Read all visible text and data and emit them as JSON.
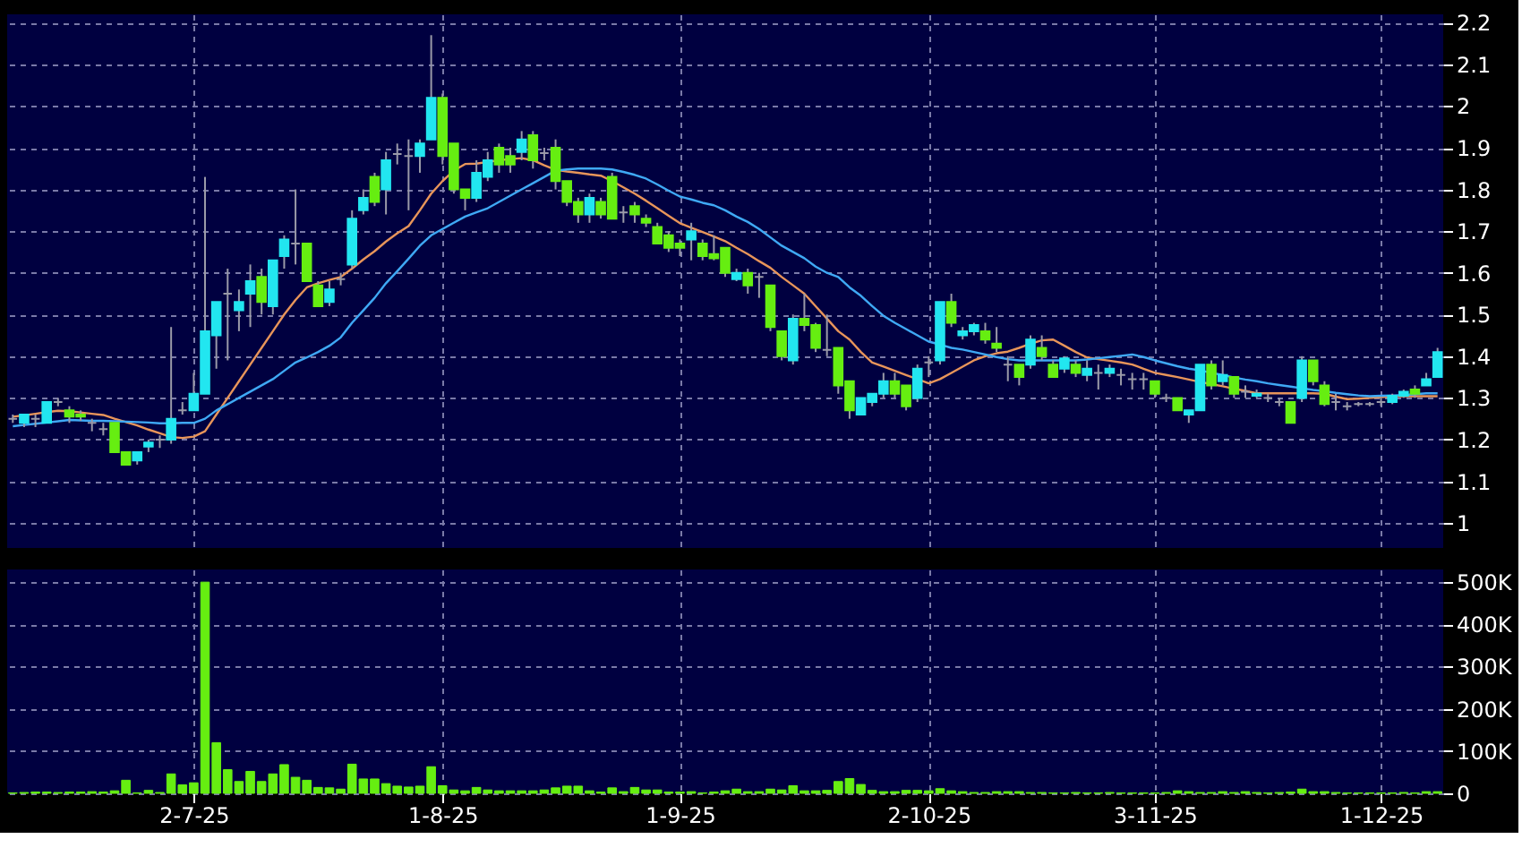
{
  "chart_data": [
    {
      "type": "candlestick",
      "ohlc": [
        [
          1.25,
          1.26,
          1.24,
          1.25
        ],
        [
          1.24,
          1.26,
          1.23,
          1.26
        ],
        [
          1.25,
          1.26,
          1.23,
          1.25
        ],
        [
          1.24,
          1.29,
          1.24,
          1.29
        ],
        [
          1.29,
          1.3,
          1.28,
          1.29
        ],
        [
          1.27,
          1.28,
          1.24,
          1.255
        ],
        [
          1.26,
          1.27,
          1.245,
          1.255
        ],
        [
          1.24,
          1.25,
          1.22,
          1.24
        ],
        [
          1.225,
          1.24,
          1.21,
          1.225
        ],
        [
          1.24,
          1.24,
          1.17,
          1.17
        ],
        [
          1.17,
          1.17,
          1.14,
          1.14
        ],
        [
          1.15,
          1.17,
          1.14,
          1.17
        ],
        [
          1.183,
          1.2,
          1.17,
          1.193
        ],
        [
          1.2,
          1.21,
          1.18,
          1.2
        ],
        [
          1.2,
          1.47,
          1.19,
          1.25
        ],
        [
          1.27,
          1.29,
          1.26,
          1.27
        ],
        [
          1.27,
          1.36,
          1.27,
          1.31
        ],
        [
          1.31,
          1.83,
          1.31,
          1.46
        ],
        [
          1.45,
          1.53,
          1.37,
          1.53
        ],
        [
          1.55,
          1.61,
          1.39,
          1.55
        ],
        [
          1.51,
          1.56,
          1.46,
          1.53
        ],
        [
          1.55,
          1.62,
          1.47,
          1.58
        ],
        [
          1.59,
          1.61,
          1.5,
          1.53
        ],
        [
          1.52,
          1.63,
          1.5,
          1.63
        ],
        [
          1.64,
          1.69,
          1.61,
          1.68
        ],
        [
          1.67,
          1.8,
          1.62,
          1.67
        ],
        [
          1.67,
          1.67,
          1.58,
          1.58
        ],
        [
          1.57,
          1.58,
          1.52,
          1.52
        ],
        [
          1.53,
          1.58,
          1.52,
          1.56
        ],
        [
          1.585,
          1.6,
          1.57,
          1.585
        ],
        [
          1.62,
          1.75,
          1.61,
          1.73
        ],
        [
          1.75,
          1.8,
          1.74,
          1.78
        ],
        [
          1.83,
          1.84,
          1.76,
          1.77
        ],
        [
          1.8,
          1.89,
          1.74,
          1.87
        ],
        [
          1.885,
          1.91,
          1.86,
          1.885
        ],
        [
          1.88,
          1.92,
          1.75,
          1.88
        ],
        [
          1.88,
          1.92,
          1.84,
          1.91
        ],
        [
          1.92,
          2.17,
          1.92,
          2.02
        ],
        [
          2.02,
          2.03,
          1.86,
          1.88
        ],
        [
          1.91,
          1.91,
          1.79,
          1.8
        ],
        [
          1.8,
          1.8,
          1.75,
          1.78
        ],
        [
          1.78,
          1.87,
          1.77,
          1.84
        ],
        [
          1.83,
          1.89,
          1.82,
          1.87
        ],
        [
          1.9,
          1.91,
          1.84,
          1.86
        ],
        [
          1.88,
          1.9,
          1.84,
          1.86
        ],
        [
          1.89,
          1.94,
          1.87,
          1.92
        ],
        [
          1.93,
          1.94,
          1.85,
          1.87
        ],
        [
          1.887,
          1.9,
          1.87,
          1.887
        ],
        [
          1.9,
          1.92,
          1.8,
          1.82
        ],
        [
          1.82,
          1.82,
          1.76,
          1.77
        ],
        [
          1.77,
          1.78,
          1.72,
          1.74
        ],
        [
          1.74,
          1.79,
          1.72,
          1.78
        ],
        [
          1.77,
          1.78,
          1.73,
          1.74
        ],
        [
          1.83,
          1.84,
          1.73,
          1.73
        ],
        [
          1.745,
          1.76,
          1.72,
          1.745
        ],
        [
          1.76,
          1.77,
          1.72,
          1.74
        ],
        [
          1.73,
          1.74,
          1.71,
          1.72
        ],
        [
          1.71,
          1.72,
          1.67,
          1.67
        ],
        [
          1.69,
          1.7,
          1.65,
          1.66
        ],
        [
          1.67,
          1.68,
          1.64,
          1.66
        ],
        [
          1.68,
          1.72,
          1.63,
          1.7
        ],
        [
          1.67,
          1.68,
          1.63,
          1.64
        ],
        [
          1.645,
          1.69,
          1.63,
          1.635
        ],
        [
          1.66,
          1.66,
          1.59,
          1.6
        ],
        [
          1.585,
          1.61,
          1.58,
          1.6
        ],
        [
          1.6,
          1.61,
          1.55,
          1.57
        ],
        [
          1.59,
          1.6,
          1.54,
          1.59
        ],
        [
          1.57,
          1.57,
          1.46,
          1.47
        ],
        [
          1.46,
          1.46,
          1.39,
          1.4
        ],
        [
          1.39,
          1.5,
          1.38,
          1.49
        ],
        [
          1.49,
          1.55,
          1.46,
          1.475
        ],
        [
          1.475,
          1.48,
          1.41,
          1.42
        ],
        [
          1.415,
          1.5,
          1.4,
          1.415
        ],
        [
          1.42,
          1.42,
          1.31,
          1.33
        ],
        [
          1.34,
          1.34,
          1.25,
          1.27
        ],
        [
          1.26,
          1.3,
          1.26,
          1.3
        ],
        [
          1.29,
          1.31,
          1.28,
          1.31
        ],
        [
          1.31,
          1.36,
          1.3,
          1.34
        ],
        [
          1.34,
          1.36,
          1.3,
          1.31
        ],
        [
          1.33,
          1.33,
          1.27,
          1.28
        ],
        [
          1.3,
          1.38,
          1.29,
          1.37
        ],
        [
          1.385,
          1.4,
          1.35,
          1.385
        ],
        [
          1.39,
          1.53,
          1.38,
          1.53
        ],
        [
          1.53,
          1.55,
          1.47,
          1.48
        ],
        [
          1.45,
          1.47,
          1.44,
          1.46
        ],
        [
          1.46,
          1.48,
          1.45,
          1.475
        ],
        [
          1.46,
          1.48,
          1.43,
          1.44
        ],
        [
          1.43,
          1.47,
          1.41,
          1.42
        ],
        [
          1.38,
          1.4,
          1.34,
          1.38
        ],
        [
          1.38,
          1.38,
          1.33,
          1.35
        ],
        [
          1.38,
          1.45,
          1.37,
          1.44
        ],
        [
          1.42,
          1.45,
          1.39,
          1.4
        ],
        [
          1.38,
          1.39,
          1.35,
          1.35
        ],
        [
          1.37,
          1.4,
          1.36,
          1.395
        ],
        [
          1.38,
          1.39,
          1.35,
          1.36
        ],
        [
          1.355,
          1.39,
          1.34,
          1.37
        ],
        [
          1.36,
          1.38,
          1.32,
          1.36
        ],
        [
          1.36,
          1.38,
          1.35,
          1.37
        ],
        [
          1.355,
          1.37,
          1.33,
          1.355
        ],
        [
          1.345,
          1.36,
          1.32,
          1.345
        ],
        [
          1.345,
          1.36,
          1.32,
          1.345
        ],
        [
          1.34,
          1.34,
          1.3,
          1.31
        ],
        [
          1.3,
          1.31,
          1.29,
          1.3
        ],
        [
          1.3,
          1.3,
          1.27,
          1.27
        ],
        [
          1.26,
          1.27,
          1.24,
          1.27
        ],
        [
          1.27,
          1.38,
          1.27,
          1.38
        ],
        [
          1.38,
          1.39,
          1.32,
          1.33
        ],
        [
          1.34,
          1.39,
          1.33,
          1.355
        ],
        [
          1.35,
          1.35,
          1.3,
          1.31
        ],
        [
          1.315,
          1.33,
          1.3,
          1.315
        ],
        [
          1.305,
          1.32,
          1.3,
          1.31
        ],
        [
          1.3,
          1.31,
          1.29,
          1.3
        ],
        [
          1.29,
          1.3,
          1.28,
          1.29
        ],
        [
          1.29,
          1.29,
          1.24,
          1.24
        ],
        [
          1.3,
          1.4,
          1.29,
          1.39
        ],
        [
          1.39,
          1.39,
          1.33,
          1.34
        ],
        [
          1.33,
          1.34,
          1.28,
          1.285
        ],
        [
          1.29,
          1.31,
          1.27,
          1.29
        ],
        [
          1.28,
          1.29,
          1.27,
          1.28
        ],
        [
          1.285,
          1.29,
          1.28,
          1.285
        ],
        [
          1.285,
          1.29,
          1.28,
          1.285
        ],
        [
          1.29,
          1.3,
          1.28,
          1.29
        ],
        [
          1.29,
          1.31,
          1.285,
          1.305
        ],
        [
          1.305,
          1.32,
          1.3,
          1.315
        ],
        [
          1.32,
          1.33,
          1.3,
          1.31
        ],
        [
          1.33,
          1.36,
          1.33,
          1.345
        ],
        [
          1.35,
          1.42,
          1.35,
          1.41
        ]
      ],
      "colors": [
        "#9a9aa8",
        "#22e6f0",
        "#9a9aa8",
        "#22e6f0",
        "#9a9aa8",
        "#66ee11",
        "#66ee11",
        "#9a9aa8",
        "#9a9aa8",
        "#66ee11",
        "#66ee11",
        "#22e6f0",
        "#22e6f0",
        "#9a9aa8",
        "#22e6f0",
        "#9a9aa8",
        "#22e6f0",
        "#22e6f0",
        "#22e6f0",
        "#9a9aa8",
        "#22e6f0",
        "#22e6f0",
        "#66ee11",
        "#22e6f0",
        "#22e6f0",
        "#9a9aa8",
        "#66ee11",
        "#66ee11",
        "#22e6f0",
        "#9a9aa8",
        "#22e6f0",
        "#22e6f0",
        "#66ee11",
        "#22e6f0",
        "#9a9aa8",
        "#9a9aa8",
        "#22e6f0",
        "#22e6f0",
        "#66ee11",
        "#66ee11",
        "#66ee11",
        "#22e6f0",
        "#22e6f0",
        "#66ee11",
        "#66ee11",
        "#22e6f0",
        "#66ee11",
        "#9a9aa8",
        "#66ee11",
        "#66ee11",
        "#66ee11",
        "#22e6f0",
        "#66ee11",
        "#66ee11",
        "#9a9aa8",
        "#66ee11",
        "#66ee11",
        "#66ee11",
        "#66ee11",
        "#66ee11",
        "#22e6f0",
        "#66ee11",
        "#66ee11",
        "#66ee11",
        "#22e6f0",
        "#66ee11",
        "#9a9aa8",
        "#66ee11",
        "#66ee11",
        "#22e6f0",
        "#66ee11",
        "#66ee11",
        "#9a9aa8",
        "#66ee11",
        "#66ee11",
        "#22e6f0",
        "#22e6f0",
        "#22e6f0",
        "#66ee11",
        "#66ee11",
        "#22e6f0",
        "#9a9aa8",
        "#22e6f0",
        "#66ee11",
        "#22e6f0",
        "#22e6f0",
        "#66ee11",
        "#66ee11",
        "#9a9aa8",
        "#66ee11",
        "#22e6f0",
        "#66ee11",
        "#66ee11",
        "#22e6f0",
        "#66ee11",
        "#22e6f0",
        "#9a9aa8",
        "#22e6f0",
        "#9a9aa8",
        "#9a9aa8",
        "#9a9aa8",
        "#66ee11",
        "#9a9aa8",
        "#66ee11",
        "#22e6f0",
        "#22e6f0",
        "#66ee11",
        "#22e6f0",
        "#66ee11",
        "#9a9aa8",
        "#22e6f0",
        "#9a9aa8",
        "#9a9aa8",
        "#66ee11",
        "#22e6f0",
        "#66ee11",
        "#66ee11",
        "#9a9aa8",
        "#9a9aa8",
        "#9a9aa8",
        "#9a9aa8",
        "#9a9aa8",
        "#22e6f0",
        "#22e6f0",
        "#66ee11",
        "#22e6f0",
        "#22e6f0"
      ],
      "series": [
        {
          "type": "line",
          "color": "#e8955a",
          "values": [
            1.255,
            1.258,
            1.262,
            1.266,
            1.269,
            1.268,
            1.265,
            1.262,
            1.259,
            1.25,
            1.242,
            1.234,
            1.224,
            1.215,
            1.206,
            1.204,
            1.207,
            1.22,
            1.26,
            1.3,
            1.34,
            1.38,
            1.42,
            1.46,
            1.5,
            1.535,
            1.565,
            1.575,
            1.583,
            1.59,
            1.61,
            1.632,
            1.652,
            1.675,
            1.695,
            1.712,
            1.75,
            1.79,
            1.82,
            1.845,
            1.861,
            1.862,
            1.866,
            1.87,
            1.873,
            1.875,
            1.87,
            1.858,
            1.847,
            1.843,
            1.84,
            1.836,
            1.833,
            1.82,
            1.805,
            1.79,
            1.773,
            1.755,
            1.737,
            1.719,
            1.708,
            1.698,
            1.687,
            1.676,
            1.66,
            1.645,
            1.628,
            1.612,
            1.59,
            1.57,
            1.55,
            1.52,
            1.49,
            1.46,
            1.44,
            1.41,
            1.385,
            1.375,
            1.365,
            1.355,
            1.345,
            1.335,
            1.345,
            1.36,
            1.375,
            1.39,
            1.4,
            1.407,
            1.411,
            1.42,
            1.43,
            1.438,
            1.44,
            1.425,
            1.41,
            1.397,
            1.393,
            1.389,
            1.385,
            1.38,
            1.37,
            1.36,
            1.355,
            1.35,
            1.344,
            1.338,
            1.333,
            1.328,
            1.322,
            1.317,
            1.311,
            1.311,
            1.311,
            1.311,
            1.311,
            1.311,
            1.31,
            1.303,
            1.297,
            1.298,
            1.3,
            1.302,
            1.304,
            1.304,
            1.304,
            1.304,
            1.304
          ]
        },
        {
          "type": "line",
          "color": "#3fa9f5",
          "values": [
            1.232,
            1.235,
            1.238,
            1.241,
            1.244,
            1.247,
            1.246,
            1.245,
            1.245,
            1.244,
            1.243,
            1.242,
            1.241,
            1.239,
            1.239,
            1.24,
            1.24,
            1.25,
            1.27,
            1.285,
            1.3,
            1.315,
            1.33,
            1.345,
            1.365,
            1.385,
            1.397,
            1.41,
            1.425,
            1.445,
            1.48,
            1.51,
            1.54,
            1.575,
            1.604,
            1.634,
            1.665,
            1.69,
            1.705,
            1.72,
            1.735,
            1.745,
            1.755,
            1.77,
            1.785,
            1.8,
            1.815,
            1.83,
            1.845,
            1.848,
            1.85,
            1.85,
            1.85,
            1.848,
            1.842,
            1.835,
            1.826,
            1.812,
            1.797,
            1.783,
            1.776,
            1.768,
            1.762,
            1.75,
            1.735,
            1.722,
            1.705,
            1.685,
            1.665,
            1.65,
            1.635,
            1.615,
            1.6,
            1.59,
            1.565,
            1.545,
            1.52,
            1.497,
            1.48,
            1.465,
            1.45,
            1.435,
            1.428,
            1.42,
            1.416,
            1.41,
            1.404,
            1.398,
            1.393,
            1.39,
            1.39,
            1.39,
            1.39,
            1.39,
            1.39,
            1.392,
            1.395,
            1.398,
            1.401,
            1.404,
            1.398,
            1.39,
            1.383,
            1.376,
            1.37,
            1.366,
            1.36,
            1.355,
            1.349,
            1.344,
            1.34,
            1.335,
            1.331,
            1.327,
            1.323,
            1.319,
            1.316,
            1.312,
            1.309,
            1.306,
            1.304,
            1.305,
            1.306,
            1.307,
            1.309,
            1.311,
            1.311
          ]
        }
      ],
      "ylim": [
        0.94,
        2.22
      ],
      "yticks": [
        1,
        1.1,
        1.2,
        1.3,
        1.4,
        1.5,
        1.6,
        1.7,
        1.8,
        1.9,
        2,
        2.1,
        2.2
      ],
      "grid": true,
      "tick_labels": "y"
    },
    {
      "type": "bar",
      "categories": [
        null,
        null,
        null,
        null,
        null,
        null,
        null,
        null,
        null,
        null,
        null,
        null,
        null,
        null,
        null,
        null,
        "2-7-25",
        null,
        null,
        null,
        null,
        null,
        null,
        null,
        null,
        null,
        null,
        null,
        null,
        null,
        null,
        null,
        null,
        null,
        null,
        null,
        null,
        null,
        "1-8-25",
        null,
        null,
        null,
        null,
        null,
        null,
        null,
        null,
        null,
        null,
        null,
        null,
        null,
        null,
        null,
        null,
        null,
        null,
        null,
        null,
        "1-9-25",
        null,
        null,
        null,
        null,
        null,
        null,
        null,
        null,
        null,
        null,
        null,
        null,
        null,
        null,
        null,
        null,
        null,
        null,
        null,
        null,
        null,
        "2-10-25",
        null,
        null,
        null,
        null,
        null,
        null,
        null,
        null,
        null,
        null,
        null,
        null,
        null,
        null,
        null,
        null,
        null,
        null,
        null,
        "3-11-25",
        null,
        null,
        null,
        null,
        null,
        null,
        null,
        null,
        null,
        null,
        null,
        null,
        null,
        null,
        null,
        null,
        null,
        null,
        null,
        "1-12-25",
        null,
        null,
        null,
        null,
        null
      ],
      "values": [
        1000,
        2000,
        3000,
        3000,
        2000,
        3000,
        3000,
        4000,
        3000,
        6000,
        31000,
        1000,
        7000,
        2000,
        46000,
        20000,
        25000,
        500000,
        120000,
        56000,
        28000,
        52000,
        28000,
        46000,
        68000,
        38000,
        31000,
        14000,
        13000,
        10000,
        69000,
        34000,
        34000,
        23000,
        17000,
        15000,
        17000,
        63000,
        18000,
        8000,
        6000,
        14000,
        8000,
        6000,
        6000,
        6000,
        6000,
        8000,
        13000,
        17000,
        17000,
        6000,
        3000,
        13000,
        4000,
        14000,
        8000,
        8000,
        3000,
        3000,
        4000,
        1000,
        3000,
        6000,
        10000,
        4000,
        4000,
        10000,
        8000,
        18000,
        6000,
        6000,
        7000,
        28000,
        35000,
        21000,
        7000,
        4000,
        4000,
        7000,
        7000,
        6000,
        11000,
        6000,
        4000,
        2000,
        2000,
        4000,
        4000,
        4000,
        2000,
        2000,
        1000,
        1000,
        2000,
        1000,
        1000,
        2000,
        1000,
        1000,
        1000,
        1000,
        2000,
        6000,
        4000,
        2000,
        2000,
        4000,
        2000,
        4000,
        2000,
        1000,
        2000,
        3000,
        10000,
        4000,
        4000,
        2000,
        1000,
        1000,
        1000,
        1000,
        1000,
        2000,
        1000,
        4000,
        4000
      ],
      "color": "#66ee11",
      "ylim": [
        0,
        530000
      ],
      "yticks": [
        0,
        {
          "value": 100000,
          "label": "100K"
        },
        {
          "value": 200000,
          "label": "200K"
        },
        {
          "value": 300000,
          "label": "300K"
        },
        {
          "value": 400000,
          "label": "400K"
        },
        {
          "value": 500000,
          "label": "500K"
        }
      ],
      "grid": true
    }
  ]
}
